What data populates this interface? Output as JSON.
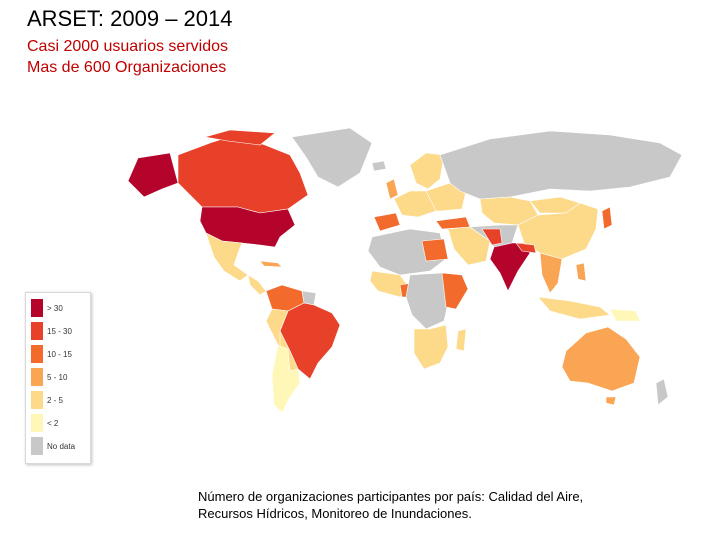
{
  "header": {
    "title": "ARSET: 2009 – 2014",
    "subtitle_line1": "Casi 2000 usuarios servidos",
    "subtitle_line2": "Mas de 600 Organizaciones"
  },
  "legend": {
    "items": [
      {
        "label": "> 30",
        "color": "#b5042c"
      },
      {
        "label": "15 - 30",
        "color": "#e8412a"
      },
      {
        "label": "10 - 15",
        "color": "#f26b2d"
      },
      {
        "label": "5 - 10",
        "color": "#f9a553"
      },
      {
        "label": "2 - 5",
        "color": "#fdd98a"
      },
      {
        "label": "< 2",
        "color": "#fff7b8"
      },
      {
        "label": "No data",
        "color": "#c8c8c8"
      }
    ]
  },
  "map": {
    "colors": {
      "gt30": "#b5042c",
      "c15_30": "#e8412a",
      "c10_15": "#f26b2d",
      "c5_10": "#f9a553",
      "c2_5": "#fdd98a",
      "lt2": "#fff7b8",
      "nodata": "#c8c8c8"
    }
  },
  "caption": "Número de organizaciones participantes por país: Calidad del Aire, Recursos Hídricos, Monitoreo de Inundaciones."
}
